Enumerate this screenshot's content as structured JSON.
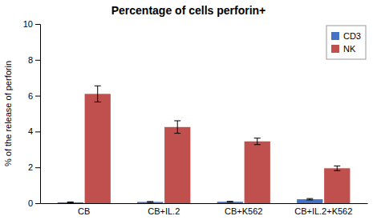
{
  "chart_data": {
    "type": "bar",
    "title": "Percentage of cells perforin+",
    "ylabel": "% of the release of perforin",
    "categories": [
      "CB",
      "CB+IL.2",
      "CB+K562",
      "CB+IL.2+K562"
    ],
    "series": [
      {
        "name": "CD3",
        "color": "#4472C4",
        "values": [
          0.05,
          0.07,
          0.08,
          0.22
        ],
        "errors": [
          0.02,
          0.02,
          0.02,
          0.04
        ]
      },
      {
        "name": "NK",
        "color": "#C0504D",
        "values": [
          6.1,
          4.25,
          3.45,
          1.95
        ],
        "errors": [
          0.45,
          0.35,
          0.18,
          0.13
        ]
      }
    ],
    "ylim": [
      0,
      10
    ],
    "yticks": [
      0,
      2,
      4,
      6,
      8,
      10
    ],
    "legend": "upper right"
  }
}
